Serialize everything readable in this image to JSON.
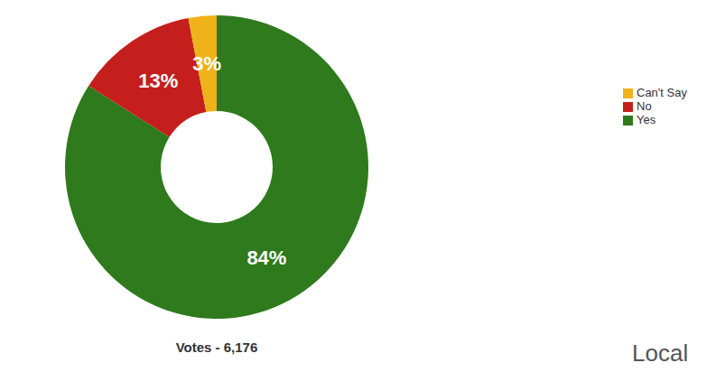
{
  "chart_data": {
    "type": "pie",
    "title": "Votes - 6,176",
    "annotation": "Local",
    "categories": [
      "Yes",
      "No",
      "Can't Say"
    ],
    "values": [
      84,
      13,
      3
    ],
    "value_labels": [
      "84%",
      "13%",
      "3%"
    ],
    "colors": [
      "#2e7a1c",
      "#c41f1c",
      "#f0b21a"
    ],
    "data_labels": true,
    "legend": "right"
  }
}
